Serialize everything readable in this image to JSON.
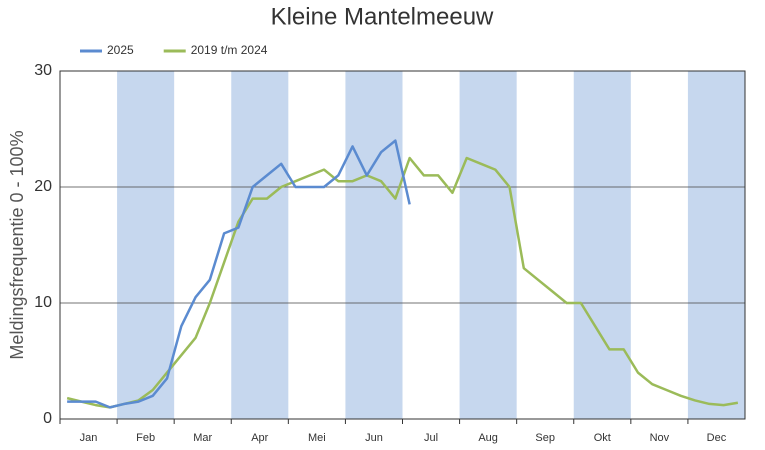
{
  "chart_data": {
    "type": "line",
    "title": "Kleine Mantelmeeuw",
    "ylabel": "Meldingsfrequentie 0 - 100%",
    "categories": [
      "Jan",
      null,
      null,
      null,
      "Feb",
      null,
      null,
      null,
      "Mar",
      null,
      null,
      null,
      "Apr",
      null,
      null,
      null,
      "Mei",
      null,
      null,
      null,
      "Jun",
      null,
      null,
      null,
      "Jul",
      null,
      null,
      null,
      "Aug",
      null,
      null,
      null,
      "Sep",
      null,
      null,
      null,
      "Okt",
      null,
      null,
      null,
      "Nov",
      null,
      null,
      null,
      "Dec",
      null,
      null,
      null
    ],
    "series": [
      {
        "name": "2025",
        "color": "#5b8bd0",
        "values": [
          1.5,
          1.5,
          1.5,
          1.0,
          1.3,
          1.5,
          2.0,
          3.5,
          8,
          10.5,
          12,
          16,
          16.5,
          20,
          21,
          22,
          20,
          20,
          20,
          21,
          23.5,
          21,
          23,
          24,
          18.5,
          null,
          null,
          null,
          null,
          null,
          null,
          null,
          null,
          null,
          null,
          null,
          null,
          null,
          null,
          null,
          null,
          null,
          null,
          null,
          null,
          null,
          null,
          null
        ]
      },
      {
        "name": "2019 t/m 2024",
        "color": "#9bbb59",
        "values": [
          1.8,
          1.5,
          1.2,
          1.0,
          1.3,
          1.6,
          2.5,
          4.0,
          5.5,
          7,
          10,
          13.5,
          17,
          19,
          19,
          20,
          20.5,
          21,
          21.5,
          20.5,
          20.5,
          21,
          20.5,
          19,
          22.5,
          21,
          21,
          19.5,
          22.5,
          22,
          21.5,
          20,
          13,
          12,
          11,
          10,
          10,
          8,
          6,
          6,
          4,
          3,
          2.5,
          2,
          1.6,
          1.3,
          1.2,
          1.4
        ]
      }
    ],
    "ylim": [
      0,
      30
    ],
    "yticks": [
      0,
      10,
      20,
      30
    ],
    "grid": true,
    "legend": "top-left"
  }
}
